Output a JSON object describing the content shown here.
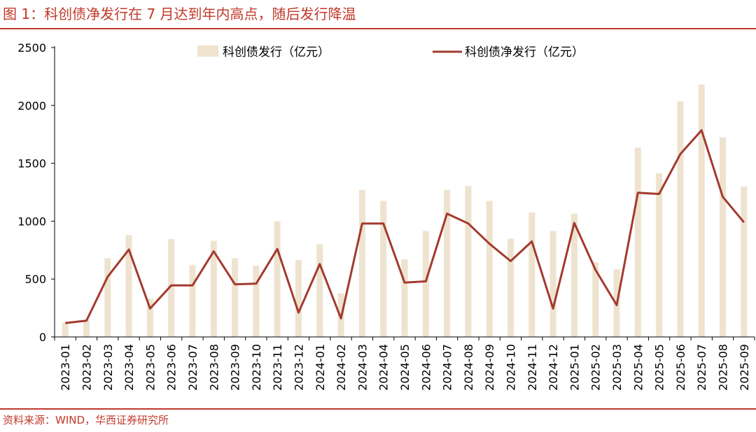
{
  "header": {
    "title": "图 1：科创债净发行在 7 月达到年内高点，随后发行降温"
  },
  "footer": {
    "source": "资料来源：WIND，华西证券研究所"
  },
  "colors": {
    "accent": "#c0392b",
    "bar": "#eee3cf",
    "line": "#a33a2e"
  },
  "chart_data": {
    "type": "bar",
    "categories": [
      "2023-01",
      "2023-02",
      "2023-03",
      "2023-04",
      "2023-05",
      "2023-06",
      "2023-07",
      "2023-08",
      "2023-09",
      "2023-10",
      "2023-11",
      "2023-12",
      "2024-01",
      "2024-02",
      "2024-03",
      "2024-04",
      "2024-05",
      "2024-06",
      "2024-07",
      "2024-08",
      "2024-09",
      "2024-10",
      "2024-11",
      "2024-12",
      "2025-01",
      "2025-02",
      "2025-03",
      "2025-04",
      "2025-05",
      "2025-06",
      "2025-07",
      "2025-08",
      "2025-09"
    ],
    "series": [
      {
        "name": "科创债发行（亿元）",
        "type": "bar",
        "values": [
          120,
          150,
          680,
          880,
          330,
          845,
          620,
          830,
          680,
          615,
          1000,
          665,
          800,
          375,
          1270,
          1175,
          670,
          915,
          1270,
          1305,
          1175,
          850,
          1075,
          915,
          1065,
          645,
          585,
          1635,
          1415,
          2035,
          2180,
          1725,
          1300
        ]
      },
      {
        "name": "科创债净发行（亿元）",
        "type": "line",
        "values": [
          120,
          140,
          520,
          755,
          245,
          445,
          445,
          740,
          455,
          460,
          760,
          210,
          630,
          160,
          980,
          980,
          470,
          480,
          1065,
          980,
          805,
          655,
          825,
          245,
          985,
          580,
          275,
          1245,
          1235,
          1580,
          1785,
          1210,
          990
        ]
      }
    ],
    "yticks": [
      0,
      500,
      1000,
      1500,
      2000,
      2500
    ],
    "ylim": [
      0,
      2500
    ]
  }
}
